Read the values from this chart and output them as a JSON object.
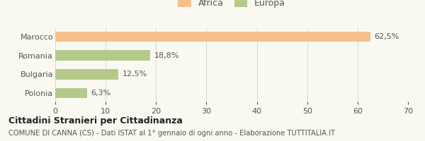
{
  "categories": [
    "Marocco",
    "Romania",
    "Bulgaria",
    "Polonia"
  ],
  "values": [
    62.5,
    18.8,
    12.5,
    6.3
  ],
  "labels": [
    "62,5%",
    "18,8%",
    "12,5%",
    "6,3%"
  ],
  "colors": [
    "#f5c08a",
    "#b5c98a",
    "#b5c98a",
    "#b5c98a"
  ],
  "legend": [
    {
      "label": "Africa",
      "color": "#f5c08a"
    },
    {
      "label": "Europa",
      "color": "#b5c98a"
    }
  ],
  "xlim": [
    0,
    70
  ],
  "xticks": [
    0,
    10,
    20,
    30,
    40,
    50,
    60,
    70
  ],
  "title_bold": "Cittadini Stranieri per Cittadinanza",
  "subtitle": "COMUNE DI CANNA (CS) - Dati ISTAT al 1° gennaio di ogni anno - Elaborazione TUTTITALIA.IT",
  "bar_height": 0.55,
  "background_color": "#f9f9f2",
  "grid_color": "#ddddcc"
}
